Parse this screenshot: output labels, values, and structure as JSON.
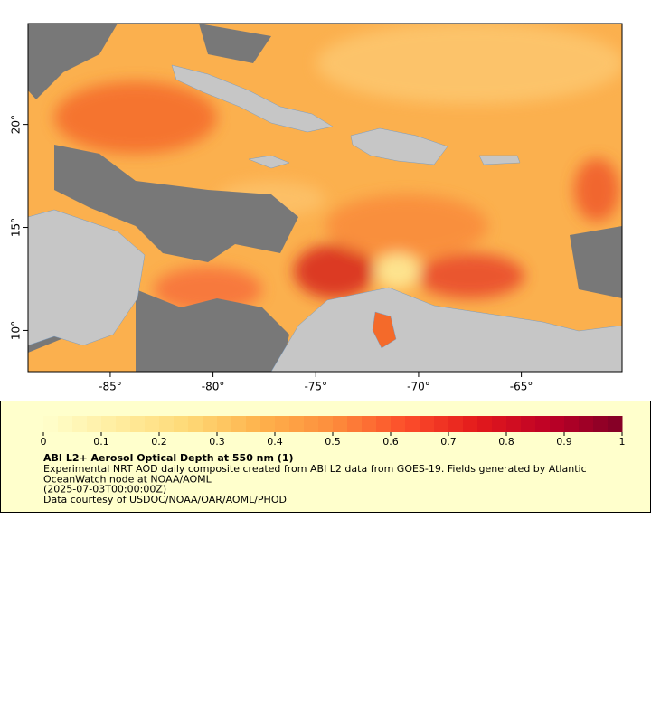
{
  "map": {
    "xlim": [
      -89,
      -60.1
    ],
    "ylim": [
      8,
      24.9
    ],
    "xticks": [
      {
        "value": -85,
        "label": "-85°"
      },
      {
        "value": -80,
        "label": "-80°"
      },
      {
        "value": -75,
        "label": "-75°"
      },
      {
        "value": -70,
        "label": "-70°"
      },
      {
        "value": -65,
        "label": "-65°"
      }
    ],
    "yticks": [
      {
        "value": 10,
        "label": "10°"
      },
      {
        "value": 15,
        "label": "15°"
      },
      {
        "value": 20,
        "label": "20°"
      }
    ]
  },
  "colorbar": {
    "range": [
      0,
      1
    ],
    "steps": 40,
    "colors": [
      "#ffffcc",
      "#ffeda0",
      "#fed976",
      "#feb24c",
      "#fd8d3c",
      "#fc4e2a",
      "#e31a1c",
      "#bd0026",
      "#800026"
    ],
    "ticks": [
      0,
      0.1,
      0.2,
      0.3,
      0.4,
      0.5,
      0.6,
      0.7,
      0.8,
      0.9,
      1
    ],
    "title": "ABI L2+ Aerosol Optical Depth at 550 nm (1)",
    "lines": [
      "Experimental NRT AOD daily composite created from ABI L2 data from GOES-19. Fields generated by Atlantic",
      "OceanWatch node at NOAA/AOML",
      "(2025-07-03T00:00:00Z)",
      "Data courtesy of USDOC/NOAA/OAR/AOML/PHOD"
    ]
  }
}
